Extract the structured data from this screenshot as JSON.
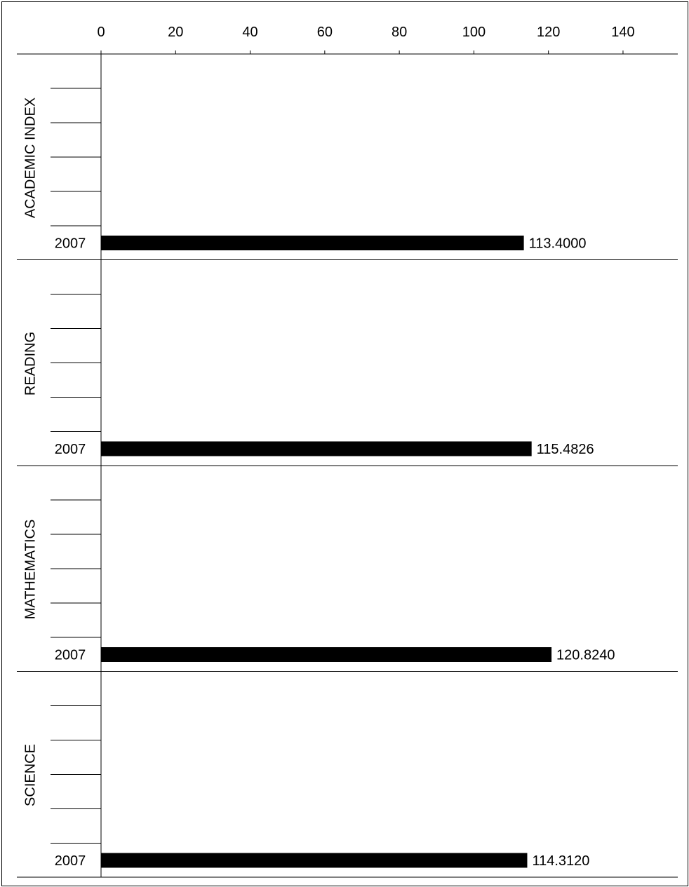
{
  "chart_data": {
    "type": "bar",
    "orientation": "horizontal",
    "xlim": [
      0,
      155
    ],
    "x_ticks": [
      0,
      20,
      40,
      60,
      80,
      100,
      120,
      140
    ],
    "grid": false,
    "legend": "none",
    "bar_color": "#000000",
    "panels": [
      {
        "label": "ACADEMIC INDEX",
        "categories": [
          "2007"
        ],
        "values": [
          113.4
        ],
        "value_labels": [
          "113.4000"
        ]
      },
      {
        "label": "READING",
        "categories": [
          "2007"
        ],
        "values": [
          115.4826
        ],
        "value_labels": [
          "115.4826"
        ]
      },
      {
        "label": "MATHEMATICS",
        "categories": [
          "2007"
        ],
        "values": [
          120.824
        ],
        "value_labels": [
          "120.8240"
        ]
      },
      {
        "label": "SCIENCE",
        "categories": [
          "2007"
        ],
        "values": [
          114.312
        ],
        "value_labels": [
          "114.3120"
        ]
      }
    ]
  }
}
